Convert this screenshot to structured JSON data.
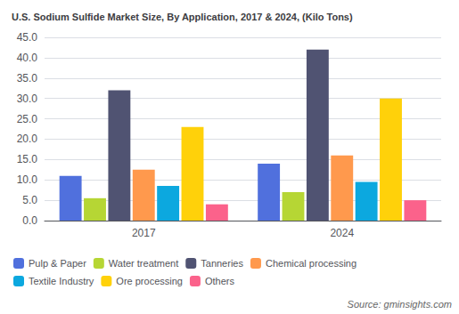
{
  "chart_data": {
    "type": "bar",
    "title": "U.S. Sodium Sulfide Market Size, By Application, 2017 & 2024, (Kilo Tons)",
    "categories": [
      "2017",
      "2024"
    ],
    "series": [
      {
        "name": "Pulp & Paper",
        "values": [
          11,
          14
        ]
      },
      {
        "name": "Water treatment",
        "values": [
          5.5,
          7
        ]
      },
      {
        "name": "Tanneries",
        "values": [
          32,
          42
        ]
      },
      {
        "name": "Chemical processing",
        "values": [
          12.5,
          16
        ]
      },
      {
        "name": "Textile Industry",
        "values": [
          8.5,
          9.5
        ]
      },
      {
        "name": "Ore processing",
        "values": [
          23,
          30
        ]
      },
      {
        "name": "Others",
        "values": [
          4,
          5
        ]
      }
    ],
    "ylim": [
      0,
      45
    ],
    "yticks": [
      {
        "value": 0,
        "label": "0.0"
      },
      {
        "value": 5,
        "label": "5.0"
      },
      {
        "value": 10,
        "label": "10.0"
      },
      {
        "value": 15,
        "label": "15.0"
      },
      {
        "value": 20,
        "label": "20.0"
      },
      {
        "value": 25,
        "label": "25.0"
      },
      {
        "value": 30,
        "label": "30.0"
      },
      {
        "value": 35,
        "label": "35.0"
      },
      {
        "value": 40,
        "label": "40.0"
      },
      {
        "value": 45,
        "label": "45.0"
      }
    ],
    "grid": true,
    "legend": "lower left",
    "annotations": [
      "Source: gminsights.com"
    ]
  }
}
